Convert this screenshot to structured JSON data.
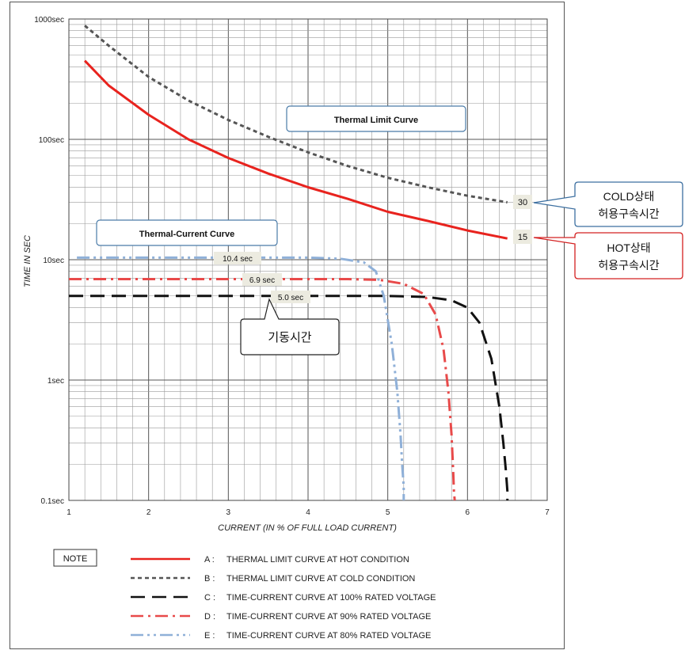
{
  "chart_data": {
    "type": "line",
    "xlabel": "CURRENT (IN  % OF FULL LOAD CURRENT)",
    "ylabel": "TIME IN SEC",
    "xlim": [
      1,
      7
    ],
    "ylim": [
      0.1,
      1000
    ],
    "yscale": "log",
    "grid": true,
    "x_ticks": [
      "1",
      "2",
      "3",
      "4",
      "5",
      "6",
      "7"
    ],
    "y_ticks": [
      {
        "value": 1000,
        "label": "1000sec"
      },
      {
        "value": 100,
        "label": "100sec"
      },
      {
        "value": 10,
        "label": "10sec"
      },
      {
        "value": 1,
        "label": "1sec"
      },
      {
        "value": 0.1,
        "label": "0.1sec"
      }
    ],
    "series": [
      {
        "key": "A",
        "color": "#e8231e",
        "dash": "solid",
        "x": [
          1.2,
          1.5,
          2,
          2.5,
          3,
          3.5,
          4,
          4.5,
          5,
          5.5,
          6,
          6.5
        ],
        "y": [
          450,
          280,
          160,
          100,
          70,
          52,
          40,
          32,
          25,
          21,
          17.5,
          15
        ]
      },
      {
        "key": "B",
        "color": "#555555",
        "dash": "short",
        "x": [
          1.2,
          1.5,
          2,
          2.5,
          3,
          3.5,
          4,
          4.5,
          5,
          5.5,
          6,
          6.5
        ],
        "y": [
          880,
          600,
          330,
          210,
          145,
          105,
          78,
          60,
          48,
          40,
          34,
          30
        ]
      },
      {
        "key": "C",
        "color": "#111111",
        "dash": "long",
        "x": [
          1,
          1.5,
          2,
          2.5,
          3,
          3.5,
          4,
          4.5,
          5,
          5.5,
          5.8,
          6.0,
          6.15,
          6.3,
          6.4,
          6.45,
          6.48,
          6.5,
          6.5
        ],
        "y": [
          5.0,
          5.0,
          5.0,
          5.0,
          5.0,
          5.0,
          5.0,
          5.0,
          5.0,
          4.9,
          4.6,
          4.0,
          3.0,
          1.5,
          0.6,
          0.3,
          0.18,
          0.12,
          0.1
        ]
      },
      {
        "key": "D",
        "color": "#e84a4a",
        "dash": "dashdot",
        "x": [
          1,
          1.5,
          2,
          2.5,
          3,
          3.5,
          4,
          4.5,
          4.9,
          5.2,
          5.45,
          5.6,
          5.7,
          5.76,
          5.8,
          5.82,
          5.83,
          5.84
        ],
        "y": [
          6.9,
          6.9,
          6.9,
          6.9,
          6.9,
          6.9,
          6.9,
          6.9,
          6.8,
          6.3,
          5.2,
          3.5,
          1.8,
          0.8,
          0.35,
          0.18,
          0.12,
          0.1
        ]
      },
      {
        "key": "E",
        "color": "#8fb0d8",
        "dash": "dashdotdot",
        "x": [
          1.1,
          1.5,
          2,
          2.5,
          3,
          3.5,
          4,
          4.4,
          4.7,
          4.85,
          4.95,
          5.05,
          5.12,
          5.16,
          5.18,
          5.2,
          5.2
        ],
        "y": [
          10.4,
          10.4,
          10.4,
          10.4,
          10.4,
          10.4,
          10.4,
          10.2,
          9.5,
          8.0,
          5.0,
          2.0,
          0.8,
          0.35,
          0.2,
          0.13,
          0.1
        ]
      }
    ]
  },
  "annotations": {
    "thermal_limit_title": "Thermal Limit Curve",
    "thermal_current_title": "Thermal-Current Curve",
    "cold_value": "30",
    "hot_value": "15",
    "cold_callout_line1": "COLD상태",
    "cold_callout_line2": "허용구속시간",
    "hot_callout_line1": "HOT상태",
    "hot_callout_line2": "허용구속시간",
    "label_e": "10.4 sec",
    "label_d": "6.9 sec",
    "label_c": "5.0 sec",
    "start_time_callout": "기동시간"
  },
  "legend": {
    "note": "NOTE",
    "items": [
      {
        "key": "A",
        "prefix": "A :",
        "text": "THERMAL LIMIT CURVE AT HOT CONDITION"
      },
      {
        "key": "B",
        "prefix": "B :",
        "text": "THERMAL LIMIT CURVE AT COLD CONDITION"
      },
      {
        "key": "C",
        "prefix": "C :",
        "text": "TIME-CURRENT CURVE AT 100% RATED VOLTAGE"
      },
      {
        "key": "D",
        "prefix": "D :",
        "text": "TIME-CURRENT CURVE AT   90% RATED VOLTAGE"
      },
      {
        "key": "E",
        "prefix": "E :",
        "text": "TIME-CURRENT CURVE AT   80% RATED VOLTAGE"
      }
    ]
  }
}
